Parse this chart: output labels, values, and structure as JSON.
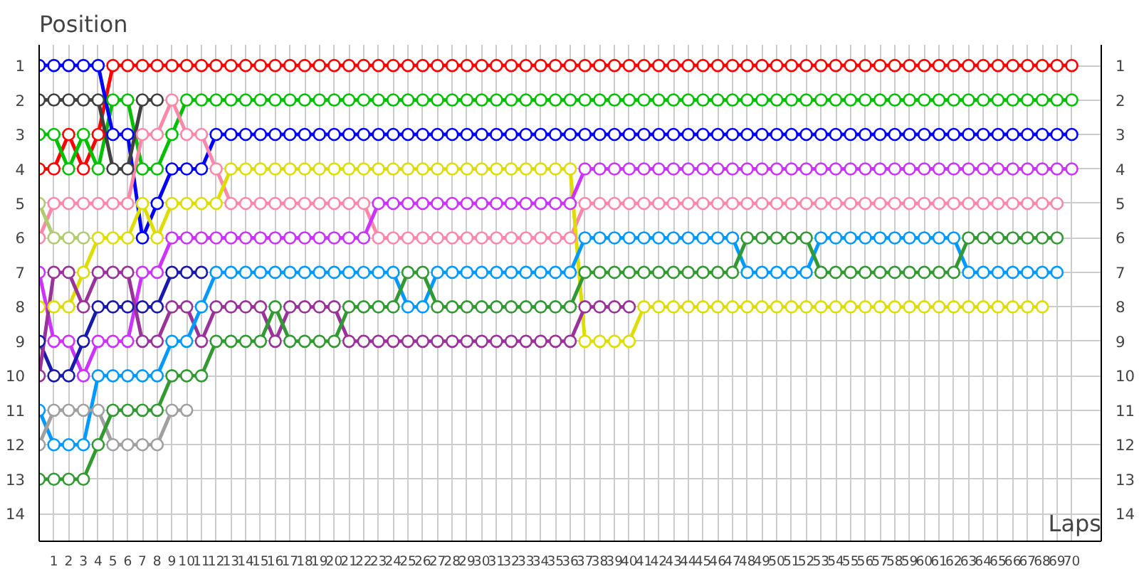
{
  "chart_data": {
    "type": "line",
    "xlabel": "Laps",
    "ylabel": "Position",
    "marker": "circle",
    "grid": true,
    "x": [
      0,
      1,
      2,
      3,
      4,
      5,
      6,
      7,
      8,
      9,
      10,
      11,
      12,
      13,
      14,
      15,
      16,
      17,
      18,
      19,
      20,
      21,
      22,
      23,
      24,
      25,
      26,
      27,
      28,
      29,
      30,
      31,
      32,
      33,
      34,
      35,
      36,
      37,
      38,
      39,
      40,
      41,
      42,
      43,
      44,
      45,
      46,
      47,
      48,
      49,
      50,
      51,
      52,
      53,
      54,
      55,
      56,
      57,
      58,
      59,
      60,
      61,
      62,
      63,
      64,
      65,
      66,
      67,
      68,
      69,
      70
    ],
    "xlim": [
      0,
      72
    ],
    "xticks": [
      1,
      2,
      3,
      4,
      5,
      6,
      7,
      8,
      9,
      10,
      11,
      12,
      13,
      14,
      15,
      16,
      17,
      18,
      19,
      20,
      21,
      22,
      23,
      24,
      25,
      26,
      27,
      28,
      29,
      30,
      31,
      32,
      33,
      34,
      35,
      36,
      37,
      38,
      39,
      40,
      41,
      42,
      43,
      44,
      45,
      46,
      47,
      48,
      49,
      50,
      51,
      52,
      53,
      54,
      55,
      56,
      57,
      58,
      59,
      60,
      61,
      62,
      63,
      64,
      65,
      66,
      67,
      68,
      69,
      70
    ],
    "ylim": [
      14.8,
      0.4
    ],
    "yticks": [
      1,
      2,
      3,
      4,
      5,
      6,
      7,
      8,
      9,
      10,
      11,
      12,
      13,
      14
    ],
    "y2lim": [
      14.8,
      0.4
    ],
    "y2ticks": [
      1,
      2,
      3,
      4,
      5,
      6,
      7,
      8,
      9,
      10,
      11,
      12,
      13,
      14
    ],
    "series": [
      {
        "color": "#ff0000",
        "values": [
          4,
          4,
          3,
          4,
          3,
          1,
          1,
          1,
          1,
          1,
          1,
          1,
          1,
          1,
          1,
          1,
          1,
          1,
          1,
          1,
          1,
          1,
          1,
          1,
          1,
          1,
          1,
          1,
          1,
          1,
          1,
          1,
          1,
          1,
          1,
          1,
          1,
          1,
          1,
          1,
          1,
          1,
          1,
          1,
          1,
          1,
          1,
          1,
          1,
          1,
          1,
          1,
          1,
          1,
          1,
          1,
          1,
          1,
          1,
          1,
          1,
          1,
          1,
          1,
          1,
          1,
          1,
          1,
          1,
          1,
          1
        ]
      },
      {
        "color": "#00c000",
        "values": [
          3,
          3,
          4,
          3,
          4,
          2,
          2,
          4,
          4,
          3,
          2,
          2,
          2,
          2,
          2,
          2,
          2,
          2,
          2,
          2,
          2,
          2,
          2,
          2,
          2,
          2,
          2,
          2,
          2,
          2,
          2,
          2,
          2,
          2,
          2,
          2,
          2,
          2,
          2,
          2,
          2,
          2,
          2,
          2,
          2,
          2,
          2,
          2,
          2,
          2,
          2,
          2,
          2,
          2,
          2,
          2,
          2,
          2,
          2,
          2,
          2,
          2,
          2,
          2,
          2,
          2,
          2,
          2,
          2,
          2,
          2
        ]
      },
      {
        "color": "#0000ff",
        "values": [
          1,
          1,
          1,
          1,
          1,
          3,
          3,
          6,
          5,
          4,
          4,
          4,
          3,
          3,
          3,
          3,
          3,
          3,
          3,
          3,
          3,
          3,
          3,
          3,
          3,
          3,
          3,
          3,
          3,
          3,
          3,
          3,
          3,
          3,
          3,
          3,
          3,
          3,
          3,
          3,
          3,
          3,
          3,
          3,
          3,
          3,
          3,
          3,
          3,
          3,
          3,
          3,
          3,
          3,
          3,
          3,
          3,
          3,
          3,
          3,
          3,
          3,
          3,
          3,
          3,
          3,
          3,
          3,
          3,
          3,
          3
        ]
      },
      {
        "color": "#404040",
        "values": [
          2,
          2,
          2,
          2,
          2,
          4,
          4,
          2,
          2,
          null,
          null,
          null,
          null,
          null,
          null,
          null,
          null,
          null,
          null,
          null,
          null,
          null,
          null,
          null,
          null,
          null,
          null,
          null,
          null,
          null,
          null,
          null,
          null,
          null,
          null,
          null,
          null,
          null,
          null,
          null,
          null,
          null,
          null,
          null,
          null,
          null,
          null,
          null,
          null,
          null,
          null,
          null,
          null,
          null,
          null,
          null,
          null,
          null,
          null,
          null,
          null,
          null,
          null,
          null,
          null,
          null,
          null,
          null,
          null,
          null,
          null
        ]
      },
      {
        "color": "#ff88aa",
        "values": [
          6,
          5,
          5,
          5,
          5,
          5,
          5,
          3,
          3,
          2,
          3,
          3,
          4,
          5,
          5,
          5,
          5,
          5,
          5,
          5,
          5,
          5,
          5,
          6,
          6,
          6,
          6,
          6,
          6,
          6,
          6,
          6,
          6,
          6,
          6,
          6,
          6,
          5,
          5,
          5,
          5,
          5,
          5,
          5,
          5,
          5,
          5,
          5,
          5,
          5,
          5,
          5,
          5,
          5,
          5,
          5,
          5,
          5,
          5,
          5,
          5,
          5,
          5,
          5,
          5,
          5,
          5,
          5,
          5,
          5,
          null
        ]
      },
      {
        "color": "#dddd00",
        "values": [
          8,
          8,
          8,
          7,
          6,
          6,
          6,
          5,
          6,
          5,
          5,
          5,
          5,
          4,
          4,
          4,
          4,
          4,
          4,
          4,
          4,
          4,
          4,
          4,
          4,
          4,
          4,
          4,
          4,
          4,
          4,
          4,
          4,
          4,
          4,
          4,
          4,
          9,
          9,
          9,
          9,
          8,
          8,
          8,
          8,
          8,
          8,
          8,
          8,
          8,
          8,
          8,
          8,
          8,
          8,
          8,
          8,
          8,
          8,
          8,
          8,
          8,
          8,
          8,
          8,
          8,
          8,
          8,
          8,
          null,
          null
        ]
      },
      {
        "color": "#b0cc70",
        "values": [
          5,
          6,
          6,
          6,
          null,
          null,
          null,
          null,
          null,
          null,
          null,
          null,
          null,
          null,
          null,
          null,
          null,
          null,
          null,
          null,
          null,
          null,
          null,
          null,
          null,
          null,
          null,
          null,
          null,
          null,
          null,
          null,
          null,
          null,
          null,
          null,
          null,
          null,
          null,
          null,
          null,
          null,
          null,
          null,
          null,
          null,
          null,
          null,
          null,
          null,
          null,
          null,
          null,
          null,
          null,
          null,
          null,
          null,
          null,
          null,
          null,
          null,
          null,
          null,
          null,
          null,
          null,
          null,
          null,
          null,
          null
        ]
      },
      {
        "color": "#cc33ff",
        "values": [
          7,
          9,
          9,
          10,
          9,
          9,
          9,
          7,
          7,
          6,
          6,
          6,
          6,
          6,
          6,
          6,
          6,
          6,
          6,
          6,
          6,
          6,
          6,
          5,
          5,
          5,
          5,
          5,
          5,
          5,
          5,
          5,
          5,
          5,
          5,
          5,
          5,
          4,
          4,
          4,
          4,
          4,
          4,
          4,
          4,
          4,
          4,
          4,
          4,
          4,
          4,
          4,
          4,
          4,
          4,
          4,
          4,
          4,
          4,
          4,
          4,
          4,
          4,
          4,
          4,
          4,
          4,
          4,
          4,
          4,
          4
        ]
      },
      {
        "color": "#1a1aaa",
        "values": [
          9,
          10,
          10,
          9,
          8,
          8,
          8,
          8,
          8,
          7,
          7,
          7,
          null,
          null,
          null,
          null,
          null,
          null,
          null,
          null,
          null,
          null,
          null,
          null,
          null,
          null,
          null,
          null,
          null,
          null,
          null,
          null,
          null,
          null,
          null,
          null,
          null,
          null,
          null,
          null,
          null,
          null,
          null,
          null,
          null,
          null,
          null,
          null,
          null,
          null,
          null,
          null,
          null,
          null,
          null,
          null,
          null,
          null,
          null,
          null,
          null,
          null,
          null,
          null,
          null,
          null,
          null,
          null,
          null,
          null,
          null
        ]
      },
      {
        "color": "#993399",
        "values": [
          10,
          7,
          7,
          8,
          7,
          7,
          7,
          9,
          9,
          8,
          8,
          9,
          8,
          8,
          8,
          8,
          9,
          8,
          8,
          8,
          8,
          9,
          9,
          9,
          9,
          9,
          9,
          9,
          9,
          9,
          9,
          9,
          9,
          9,
          9,
          9,
          9,
          8,
          8,
          8,
          8,
          null,
          null,
          null,
          null,
          null,
          null,
          null,
          null,
          null,
          null,
          null,
          null,
          null,
          null,
          null,
          null,
          null,
          null,
          null,
          null,
          null,
          null,
          null,
          null,
          null,
          null,
          null,
          null,
          null,
          null
        ]
      },
      {
        "color": "#0099ff",
        "values": [
          11,
          12,
          12,
          12,
          10,
          10,
          10,
          10,
          10,
          9,
          9,
          8,
          7,
          7,
          7,
          7,
          7,
          7,
          7,
          7,
          7,
          7,
          7,
          7,
          7,
          8,
          8,
          7,
          7,
          7,
          7,
          7,
          7,
          7,
          7,
          7,
          7,
          6,
          6,
          6,
          6,
          6,
          6,
          6,
          6,
          6,
          6,
          6,
          7,
          7,
          7,
          7,
          7,
          6,
          6,
          6,
          6,
          6,
          6,
          6,
          6,
          6,
          6,
          7,
          7,
          7,
          7,
          7,
          7,
          7,
          null
        ]
      },
      {
        "color": "#a0a0a0",
        "values": [
          12,
          11,
          11,
          11,
          11,
          12,
          12,
          12,
          12,
          11,
          11,
          null,
          null,
          null,
          null,
          null,
          null,
          null,
          null,
          null,
          null,
          null,
          null,
          null,
          null,
          null,
          null,
          null,
          null,
          null,
          null,
          null,
          null,
          null,
          null,
          null,
          null,
          null,
          null,
          null,
          null,
          null,
          null,
          null,
          null,
          null,
          null,
          null,
          null,
          null,
          null,
          null,
          null,
          null,
          null,
          null,
          null,
          null,
          null,
          null,
          null,
          null,
          null,
          null,
          null,
          null,
          null,
          null,
          null,
          null,
          null
        ]
      },
      {
        "color": "#339933",
        "values": [
          13,
          13,
          13,
          13,
          12,
          11,
          11,
          11,
          11,
          10,
          10,
          10,
          9,
          9,
          9,
          9,
          8,
          9,
          9,
          9,
          9,
          8,
          8,
          8,
          8,
          7,
          7,
          8,
          8,
          8,
          8,
          8,
          8,
          8,
          8,
          8,
          8,
          7,
          7,
          7,
          7,
          7,
          7,
          7,
          7,
          7,
          7,
          7,
          6,
          6,
          6,
          6,
          6,
          7,
          7,
          7,
          7,
          7,
          7,
          7,
          7,
          7,
          7,
          6,
          6,
          6,
          6,
          6,
          6,
          6,
          null
        ]
      }
    ]
  }
}
